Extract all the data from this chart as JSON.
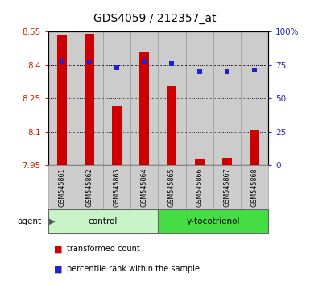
{
  "title": "GDS4059 / 212357_at",
  "samples": [
    "GSM545861",
    "GSM545862",
    "GSM545863",
    "GSM545864",
    "GSM545865",
    "GSM545866",
    "GSM545867",
    "GSM545868"
  ],
  "red_values": [
    8.535,
    8.54,
    8.215,
    8.46,
    8.305,
    7.975,
    7.985,
    8.105
  ],
  "blue_values": [
    78,
    77,
    73,
    78,
    76,
    70,
    70,
    71
  ],
  "ylim_left": [
    7.95,
    8.55
  ],
  "ylim_right": [
    0,
    100
  ],
  "yticks_left": [
    7.95,
    8.1,
    8.25,
    8.4,
    8.55
  ],
  "yticks_right": [
    0,
    25,
    50,
    75,
    100
  ],
  "ytick_labels_left": [
    "7.95",
    "8.1",
    "8.25",
    "8.4",
    "8.55"
  ],
  "ytick_labels_right": [
    "0",
    "25",
    "50",
    "75",
    "100%"
  ],
  "groups": [
    {
      "label": "control",
      "start": 0,
      "end": 3,
      "color": "#c8f5c8"
    },
    {
      "label": "γ-tocotrienol",
      "start": 4,
      "end": 7,
      "color": "#44dd44"
    }
  ],
  "bar_color": "#cc0000",
  "dot_color": "#2222cc",
  "bar_bottom": 7.95,
  "bg_color": "#ffffff",
  "legend_red": "transformed count",
  "legend_blue": "percentile rank within the sample",
  "agent_label": "agent",
  "left_tick_color": "#cc2200",
  "right_tick_color": "#2222cc",
  "col_bg": "#cccccc",
  "col_edge": "#999999"
}
